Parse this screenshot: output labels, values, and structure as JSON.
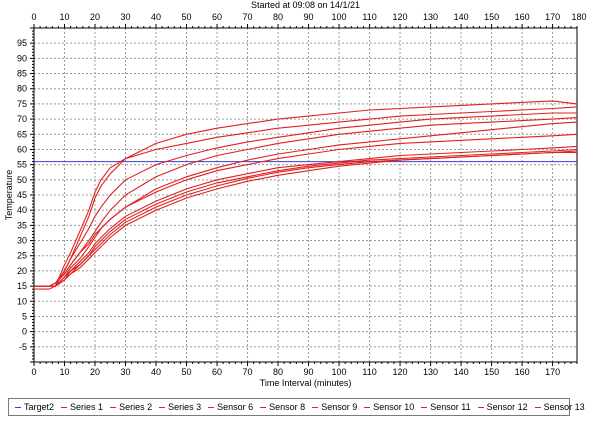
{
  "chart_data": {
    "type": "line",
    "title": "Started at 09:08 on 14/1/21",
    "xlabel": "Time Interval (minutes)",
    "ylabel": "Temperature",
    "xlim": [
      0,
      178
    ],
    "ylim": [
      -10,
      100
    ],
    "x_ticks": [
      0,
      10,
      20,
      30,
      40,
      50,
      60,
      70,
      80,
      90,
      100,
      110,
      120,
      130,
      140,
      150,
      160,
      170
    ],
    "x_ticks_top": [
      0,
      10,
      20,
      30,
      40,
      50,
      60,
      70,
      80,
      90,
      100,
      110,
      120,
      130,
      140,
      150,
      160,
      170,
      180
    ],
    "y_ticks": [
      -5,
      0,
      5,
      10,
      15,
      20,
      25,
      30,
      35,
      40,
      45,
      50,
      55,
      60,
      65,
      70,
      75,
      80,
      85,
      90,
      95
    ],
    "grid": true,
    "legend_position": "bottom",
    "colors": {
      "target": "#3b3bd6",
      "series": "#e02020"
    },
    "series": [
      {
        "name": "Target2",
        "color": "#3b3bd6",
        "x": [
          0,
          178
        ],
        "y": [
          56,
          56
        ]
      },
      {
        "name": "Series 1",
        "color": "#e02020",
        "x": [
          0,
          5,
          7,
          10,
          12,
          15,
          18,
          20,
          22,
          25,
          30,
          40,
          50,
          60,
          70,
          80,
          90,
          100,
          110,
          120,
          130,
          140,
          150,
          160,
          170,
          178
        ],
        "y": [
          15,
          15,
          15,
          22,
          26,
          33,
          40,
          46,
          50,
          54,
          57,
          60,
          62,
          64,
          65.5,
          67,
          68,
          69,
          70,
          71,
          71.5,
          72,
          72.5,
          73,
          73.5,
          74
        ]
      },
      {
        "name": "Series 2",
        "color": "#e02020",
        "x": [
          0,
          5,
          7,
          10,
          12,
          15,
          18,
          20,
          22,
          25,
          30,
          40,
          50,
          60,
          70,
          80,
          90,
          100,
          110,
          120,
          130,
          140,
          150,
          160,
          170,
          178
        ],
        "y": [
          14,
          14,
          15,
          20,
          24,
          31,
          38,
          44,
          48,
          52,
          57,
          62,
          65,
          67,
          68.5,
          70,
          71,
          72,
          73,
          73.5,
          74,
          74.5,
          75,
          75.5,
          76,
          75
        ]
      },
      {
        "name": "Series 3",
        "color": "#e02020",
        "x": [
          0,
          5,
          7,
          10,
          12,
          15,
          18,
          20,
          22,
          25,
          30,
          40,
          50,
          60,
          70,
          80,
          90,
          100,
          110,
          120,
          130,
          140,
          150,
          160,
          170,
          178
        ],
        "y": [
          15,
          15,
          16,
          19,
          22,
          26,
          30,
          33,
          36,
          40,
          45,
          51,
          55,
          58,
          60,
          62,
          63.5,
          65,
          66,
          67,
          68,
          68.5,
          69,
          69.5,
          70,
          70.5
        ]
      },
      {
        "name": "Sensor 6",
        "color": "#e02020",
        "x": [
          0,
          5,
          7,
          10,
          12,
          15,
          18,
          20,
          22,
          25,
          30,
          40,
          50,
          60,
          70,
          80,
          90,
          100,
          110,
          120,
          130,
          140,
          150,
          160,
          170,
          178
        ],
        "y": [
          15,
          15,
          15,
          18,
          21,
          24,
          28,
          31,
          34,
          37,
          41,
          46,
          50,
          53,
          55,
          57,
          58.5,
          60,
          61,
          62,
          62.5,
          63,
          63.5,
          64,
          64.5,
          65
        ]
      },
      {
        "name": "Sensor 8",
        "color": "#e02020",
        "x": [
          0,
          5,
          7,
          10,
          12,
          15,
          18,
          20,
          22,
          25,
          30,
          40,
          50,
          60,
          70,
          80,
          90,
          100,
          110,
          120,
          130,
          140,
          150,
          160,
          170,
          178
        ],
        "y": [
          15,
          15,
          15,
          17,
          20,
          23,
          26,
          29,
          31,
          34,
          38,
          43,
          47,
          50,
          52,
          54,
          55,
          56,
          57,
          58,
          58.5,
          59,
          59.5,
          60,
          60.5,
          61
        ]
      },
      {
        "name": "Sensor 9",
        "color": "#e02020",
        "x": [
          0,
          5,
          7,
          10,
          12,
          15,
          18,
          20,
          22,
          25,
          30,
          40,
          50,
          60,
          70,
          80,
          90,
          100,
          110,
          120,
          130,
          140,
          150,
          160,
          170,
          178
        ],
        "y": [
          15,
          15,
          15,
          18,
          20,
          22,
          25,
          28,
          30,
          33,
          37,
          42,
          46,
          49,
          51,
          53,
          54.5,
          55.5,
          56.5,
          57,
          57.5,
          58,
          58.5,
          59,
          59.5,
          60
        ]
      },
      {
        "name": "Sensor 10",
        "color": "#e02020",
        "x": [
          0,
          5,
          7,
          10,
          12,
          15,
          18,
          20,
          22,
          25,
          30,
          40,
          50,
          60,
          70,
          80,
          90,
          100,
          110,
          120,
          130,
          140,
          150,
          160,
          170,
          178
        ],
        "y": [
          15,
          15,
          15,
          17,
          19,
          22,
          25,
          27,
          29,
          32,
          36,
          41,
          45,
          48,
          50.5,
          52.5,
          54,
          55,
          56,
          56.5,
          57,
          57.5,
          58,
          58.5,
          59,
          59.5
        ]
      },
      {
        "name": "Sensor 11",
        "color": "#e02020",
        "x": [
          0,
          5,
          7,
          10,
          12,
          15,
          18,
          20,
          22,
          25,
          30,
          40,
          50,
          60,
          70,
          80,
          90,
          100,
          110,
          120,
          130,
          140,
          150,
          160,
          170,
          178
        ],
        "y": [
          15,
          15,
          16,
          19,
          22,
          26,
          29,
          32,
          34,
          37,
          41,
          47,
          51,
          54,
          56.5,
          58.5,
          60,
          61.5,
          62.5,
          63.5,
          64.5,
          65.5,
          66.5,
          67.5,
          68.5,
          69
        ]
      },
      {
        "name": "Sensor 12",
        "color": "#e02020",
        "x": [
          0,
          5,
          7,
          10,
          12,
          15,
          18,
          20,
          22,
          25,
          30,
          40,
          50,
          60,
          70,
          80,
          90,
          100,
          110,
          120,
          130,
          140,
          150,
          160,
          170,
          178
        ],
        "y": [
          15,
          15,
          16,
          20,
          24,
          29,
          34,
          38,
          41,
          45,
          50,
          55,
          58,
          60.5,
          62.5,
          64,
          65.5,
          67,
          68,
          69,
          70,
          70.5,
          71,
          71.5,
          72,
          72
        ]
      },
      {
        "name": "Sensor 13",
        "color": "#e02020",
        "x": [
          0,
          5,
          7,
          10,
          12,
          15,
          18,
          20,
          22,
          25,
          30,
          40,
          50,
          60,
          70,
          80,
          90,
          100,
          110,
          120,
          130,
          140,
          150,
          160,
          170,
          178
        ],
        "y": [
          15,
          15,
          15,
          17,
          19,
          21,
          24,
          26,
          28,
          31,
          35,
          40,
          44,
          47,
          49.5,
          51.5,
          53,
          54.5,
          55.5,
          56.5,
          57,
          57.5,
          58,
          58.5,
          59,
          59
        ]
      }
    ]
  }
}
